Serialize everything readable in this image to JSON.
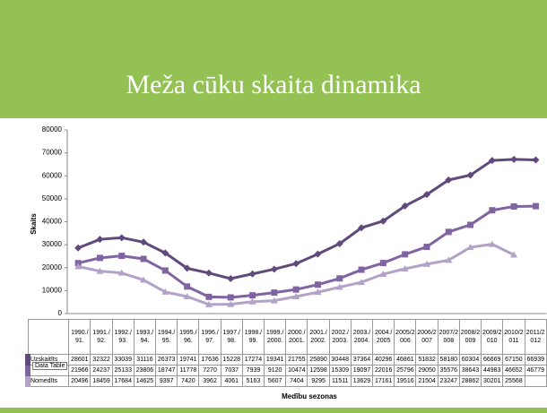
{
  "title": "Meža cūku skaita dinamika",
  "chart_data": {
    "type": "line",
    "ylabel": "Skaits",
    "xlabel": "Medību sezonas",
    "tooltip": "Data Table",
    "categories": [
      "1990./91.",
      "1991./92.",
      "1992./93.",
      "1993./94.",
      "1994./95.",
      "1995./96.",
      "1996./97.",
      "1997./98.",
      "1998./99.",
      "1999./2000.",
      "2000./2001.",
      "2001./2002.",
      "2002./2003.",
      "2003./2004.",
      "2004./2005",
      "2005/2006",
      "2006/2007",
      "2007/2008",
      "2008/2009",
      "2009/2010",
      "2010/2011",
      "2011/2012"
    ],
    "ylim": [
      0,
      80000
    ],
    "yticks": [
      0,
      10000,
      20000,
      30000,
      40000,
      50000,
      60000,
      70000,
      80000
    ],
    "grid": false,
    "series": [
      {
        "name": "Uzskaitīts",
        "color": "#5f4a7b",
        "values": [
          28601,
          32322,
          33039,
          31116,
          26373,
          19741,
          17636,
          15228,
          17274,
          19341,
          21755,
          25890,
          30448,
          37364,
          40296,
          46861,
          51832,
          58180,
          60304,
          66669,
          67150,
          66939
        ]
      },
      {
        "name": null,
        "color": "#8064a2",
        "values": [
          21966,
          24237,
          25133,
          23806,
          18747,
          11778,
          7270,
          7037,
          7939,
          9120,
          10474,
          12598,
          15309,
          19097,
          22016,
          25796,
          29050,
          35576,
          38643,
          44983,
          46652,
          46779
        ]
      },
      {
        "name": "Nomedīts",
        "color": "#b3a2c7",
        "values": [
          20496,
          18459,
          17684,
          14625,
          9397,
          7420,
          3962,
          4061,
          5163,
          5607,
          7404,
          9295,
          11511,
          13629,
          17161,
          19516,
          21504,
          23247,
          28862,
          30201,
          25568,
          null
        ]
      }
    ]
  }
}
